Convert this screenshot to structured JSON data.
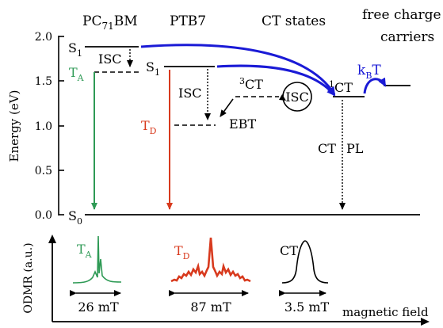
{
  "headers": {
    "pcbm": {
      "main": "PC",
      "sub": "71",
      "tail": "BM"
    },
    "ptb7": "PTB7",
    "ct_states": "CT states",
    "free_charge_line1": "free charge",
    "free_charge_line2": "carriers"
  },
  "axis": {
    "ylabel": "Energy (eV)",
    "ticks": [
      "2.0",
      "1.5",
      "1.0",
      "0.5",
      "0.0"
    ]
  },
  "levels": {
    "s1_pcbm": {
      "main": "S",
      "sub": "1"
    },
    "s1_ptb7": {
      "main": "S",
      "sub": "1"
    },
    "s0": {
      "main": "S",
      "sub": "0"
    },
    "ta": {
      "main": "T",
      "sub": "A"
    },
    "td": {
      "main": "T",
      "sub": "D"
    },
    "ct3": {
      "sup": "3",
      "main": "CT"
    },
    "ct1": {
      "sup": "1",
      "main": "CT"
    }
  },
  "labels": {
    "isc_pcbm": "ISC",
    "isc_ptb7": "ISC",
    "isc_ct": "ISC",
    "ebt": "EBT",
    "kbt": {
      "main": "k",
      "sub": "B",
      "tail": "T"
    },
    "ct_pl_left": "CT",
    "ct_pl_right": "PL"
  },
  "odmr": {
    "ylabel": "ODMR (a.u.)",
    "xlabel": "magnetic field",
    "spectra": [
      {
        "label_main": "T",
        "label_sub": "A",
        "width": "26 mT"
      },
      {
        "label_main": "T",
        "label_sub": "D",
        "width": "87 mT"
      },
      {
        "label_main": "CT",
        "label_sub": "",
        "width": "3.5 mT"
      }
    ]
  },
  "colors": {
    "green": "#2e9a55",
    "red": "#d83a1e",
    "blue": "#1a1ad6",
    "black": "#000000"
  }
}
